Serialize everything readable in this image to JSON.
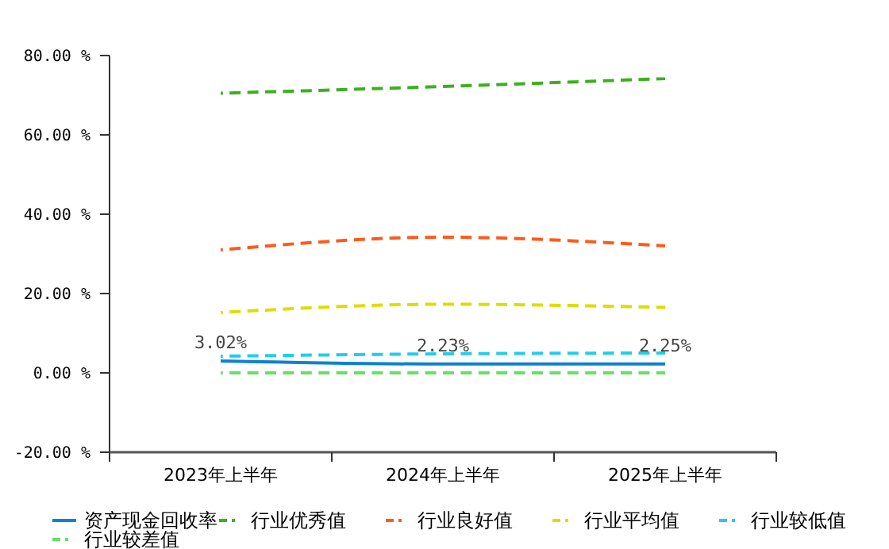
{
  "chart_data": {
    "type": "line",
    "categories": [
      "2023年上半年",
      "2024年上半年",
      "2025年上半年"
    ],
    "series": [
      {
        "name": "资产现金回收率",
        "color": "#0a84cc",
        "values": [
          3.02,
          2.23,
          2.25
        ],
        "line_style": "solid",
        "value_labels": [
          "3.02%",
          "2.23%",
          "2.25%"
        ]
      },
      {
        "name": "行业优秀值",
        "color": "#3cb01e",
        "values": [
          70.5,
          72.2,
          74.2
        ],
        "line_style": "dashed"
      },
      {
        "name": "行业良好值",
        "color": "#ff5a1a",
        "values": [
          31,
          34.2,
          32
        ],
        "line_style": "dashed"
      },
      {
        "name": "行业平均值",
        "color": "#dddd00",
        "values": [
          15.2,
          17.3,
          16.5
        ],
        "line_style": "dashed"
      },
      {
        "name": "行业较低值",
        "color": "#22ccee",
        "values": [
          4.2,
          4.8,
          5
        ],
        "line_style": "dashed"
      },
      {
        "name": "行业较差值",
        "color": "#66e066",
        "values": [
          0,
          0,
          0
        ],
        "line_style": "dashed"
      }
    ],
    "ylim": [
      -20,
      80
    ],
    "yticks": [
      {
        "value": -20,
        "label": "-20.00 %"
      },
      {
        "value": 0,
        "label": "0.00 %"
      },
      {
        "value": 20,
        "label": "20.00 %"
      },
      {
        "value": 40,
        "label": "40.00 %"
      },
      {
        "value": 60,
        "label": "60.00 %"
      },
      {
        "value": 80,
        "label": "80.00 %"
      }
    ],
    "grid": false,
    "legend": "bottom",
    "marker": "none"
  }
}
